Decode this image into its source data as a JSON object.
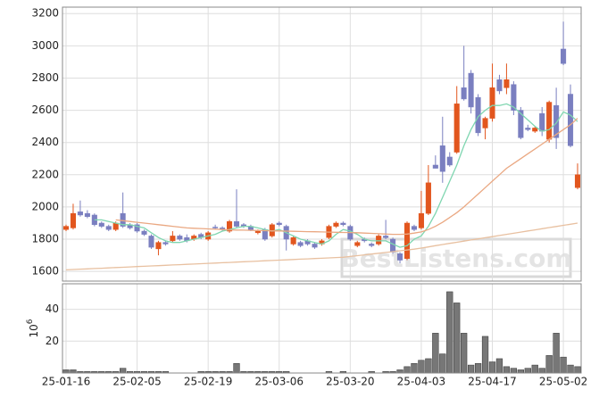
{
  "watermark": "BestListens.com",
  "chart_data": [
    {
      "type": "candlestick",
      "categories": [
        "25-01-16",
        null,
        null,
        null,
        null,
        null,
        null,
        null,
        null,
        null,
        "25-02-05",
        null,
        null,
        null,
        null,
        null,
        null,
        null,
        null,
        null,
        "25-02-19",
        null,
        null,
        null,
        null,
        null,
        null,
        null,
        null,
        null,
        "25-03-06",
        null,
        null,
        null,
        null,
        null,
        null,
        null,
        null,
        null,
        "25-03-20",
        null,
        null,
        null,
        null,
        null,
        null,
        null,
        null,
        null,
        "25-04-03",
        null,
        null,
        null,
        null,
        null,
        null,
        null,
        null,
        null,
        "25-04-17",
        null,
        null,
        null,
        null,
        null,
        null,
        null,
        null,
        null,
        "25-05-02",
        null,
        null
      ],
      "open": [
        1860,
        1870,
        1970,
        1960,
        1950,
        1900,
        1880,
        1860,
        1960,
        1890,
        1890,
        1850,
        1820,
        1740,
        1780,
        1790,
        1820,
        1810,
        1800,
        1830,
        1800,
        1875,
        1870,
        1850,
        1910,
        1890,
        1880,
        1840,
        1860,
        1820,
        1900,
        1880,
        1770,
        1780,
        1790,
        1770,
        1770,
        1810,
        1880,
        1900,
        1880,
        1760,
        1800,
        1770,
        1770,
        1820,
        1800,
        1710,
        1680,
        1880,
        1870,
        1960,
        2260,
        2380,
        2310,
        2340,
        2740,
        2830,
        2680,
        2490,
        2550,
        2790,
        2740,
        2760,
        2600,
        2490,
        2470,
        2580,
        2420,
        2630,
        2980,
        2700,
        2120
      ],
      "high": [
        1890,
        2020,
        2040,
        1980,
        1960,
        1910,
        1890,
        1910,
        2090,
        1900,
        1900,
        1860,
        1830,
        1790,
        1790,
        1850,
        1830,
        1830,
        1830,
        1840,
        1850,
        1890,
        1880,
        1920,
        2110,
        1900,
        1890,
        1860,
        1870,
        1900,
        1910,
        1890,
        1820,
        1790,
        1800,
        1780,
        1800,
        1890,
        1910,
        1910,
        1890,
        1790,
        1810,
        1780,
        1830,
        1920,
        1810,
        1720,
        1910,
        1890,
        2100,
        2260,
        2320,
        2560,
        2340,
        2750,
        3000,
        2850,
        2700,
        2560,
        2890,
        2820,
        2890,
        2780,
        2620,
        2510,
        2500,
        2620,
        2660,
        2740,
        3150,
        2760,
        2270
      ],
      "low": [
        1850,
        1860,
        1940,
        1930,
        1880,
        1870,
        1850,
        1850,
        1870,
        1860,
        1840,
        1820,
        1740,
        1700,
        1760,
        1780,
        1790,
        1780,
        1790,
        1800,
        1790,
        1860,
        1850,
        1840,
        1870,
        1870,
        1850,
        1830,
        1790,
        1810,
        1880,
        1730,
        1760,
        1750,
        1760,
        1740,
        1760,
        1800,
        1870,
        1880,
        1790,
        1750,
        1780,
        1750,
        1760,
        1800,
        1710,
        1650,
        1670,
        1850,
        1860,
        1950,
        2240,
        2150,
        2250,
        2330,
        2660,
        2580,
        2440,
        2420,
        2530,
        2700,
        2700,
        2570,
        2420,
        2470,
        2460,
        2440,
        2400,
        2360,
        2880,
        2370,
        2110
      ],
      "close": [
        1880,
        1960,
        1950,
        1940,
        1890,
        1880,
        1860,
        1900,
        1880,
        1870,
        1850,
        1830,
        1750,
        1780,
        1770,
        1820,
        1800,
        1790,
        1820,
        1810,
        1840,
        1870,
        1860,
        1910,
        1880,
        1880,
        1860,
        1850,
        1800,
        1890,
        1890,
        1800,
        1810,
        1760,
        1770,
        1750,
        1790,
        1880,
        1900,
        1890,
        1800,
        1780,
        1790,
        1760,
        1820,
        1810,
        1720,
        1670,
        1900,
        1860,
        1960,
        2150,
        2240,
        2220,
        2260,
        2640,
        2670,
        2620,
        2460,
        2550,
        2740,
        2720,
        2790,
        2600,
        2430,
        2480,
        2490,
        2470,
        2650,
        2430,
        2890,
        2380,
        2200
      ],
      "up_color": "#e2561e",
      "down_color": "#7a7fc0",
      "series": [
        {
          "color": "#7fd6b0",
          "values": [
            null,
            null,
            null,
            null,
            1920,
            1920,
            1910,
            1900,
            1890,
            1890,
            1880,
            1870,
            1840,
            1810,
            1790,
            1780,
            1780,
            1790,
            1800,
            1810,
            1820,
            1830,
            1850,
            1860,
            1870,
            1880,
            1880,
            1870,
            1860,
            1850,
            1860,
            1840,
            1820,
            1800,
            1790,
            1780,
            1770,
            1790,
            1830,
            1860,
            1850,
            1830,
            1800,
            1790,
            1790,
            1790,
            1770,
            1750,
            1760,
            1800,
            1820,
            1880,
            1960,
            2060,
            2160,
            2260,
            2380,
            2480,
            2560,
            2600,
            2630,
            2630,
            2640,
            2620,
            2580,
            2540,
            2500,
            2470,
            2480,
            2520,
            2590,
            2570,
            2530
          ]
        },
        {
          "color": "#eaa882",
          "values": [
            null,
            null,
            null,
            null,
            null,
            null,
            null,
            1920,
            1915,
            1910,
            1905,
            1900,
            1895,
            1890,
            1885,
            1880,
            1875,
            1870,
            1868,
            1866,
            1864,
            1862,
            1860,
            1858,
            1857,
            1856,
            1855,
            1854,
            1853,
            1852,
            1851,
            1850,
            1849,
            1848,
            1847,
            1846,
            1845,
            1844,
            1843,
            1842,
            1841,
            1840,
            1838,
            1836,
            1834,
            1832,
            1830,
            1830,
            1832,
            1838,
            1845,
            1860,
            1880,
            1905,
            1935,
            1965,
            2000,
            2040,
            2080,
            2120,
            2160,
            2200,
            2240,
            2270,
            2300,
            2330,
            2360,
            2390,
            2420,
            2450,
            2480,
            2510,
            2550
          ]
        },
        {
          "color": "#e8c0a0",
          "values": [
            1610,
            1612,
            1614,
            1616,
            1618,
            1620,
            1622,
            1624,
            1626,
            1628,
            1630,
            1632,
            1634,
            1636,
            1638,
            1640,
            1642,
            1644,
            1646,
            1648,
            1650,
            1652,
            1654,
            1656,
            1658,
            1660,
            1662,
            1664,
            1666,
            1668,
            1670,
            1672,
            1674,
            1676,
            1678,
            1680,
            1682,
            1684,
            1686,
            1688,
            1693,
            1698,
            1703,
            1708,
            1713,
            1718,
            1723,
            1728,
            1733,
            1738,
            1745,
            1752,
            1760,
            1767,
            1774,
            1781,
            1788,
            1795,
            1802,
            1809,
            1816,
            1823,
            1830,
            1837,
            1844,
            1851,
            1858,
            1865,
            1872,
            1879,
            1886,
            1893,
            1900
          ]
        }
      ],
      "ylim": [
        1540,
        3240
      ],
      "yticks": [
        1600,
        1800,
        2000,
        2200,
        2400,
        2600,
        2800,
        3000,
        3200
      ],
      "grid": true
    },
    {
      "type": "bar",
      "color": "#777777",
      "values": [
        2,
        2,
        1,
        1,
        1,
        1,
        1,
        1,
        3,
        1,
        1,
        1,
        1,
        1,
        1,
        0,
        0,
        0,
        0,
        1,
        1,
        1,
        1,
        1,
        6,
        1,
        1,
        1,
        1,
        1,
        1,
        1,
        0,
        0,
        0,
        0,
        0,
        1,
        0,
        1,
        0,
        0,
        0,
        1,
        0,
        1,
        1,
        2,
        4,
        6,
        8,
        9,
        25,
        12,
        51,
        44,
        25,
        5,
        6,
        23,
        7,
        9,
        4,
        3,
        2,
        3,
        5,
        3,
        11,
        25,
        10,
        5,
        4
      ],
      "ylabel": "10",
      "ylabel_exponent": "6",
      "ylim": [
        0,
        56
      ],
      "yticks": [
        20,
        40
      ],
      "grid": true
    }
  ]
}
